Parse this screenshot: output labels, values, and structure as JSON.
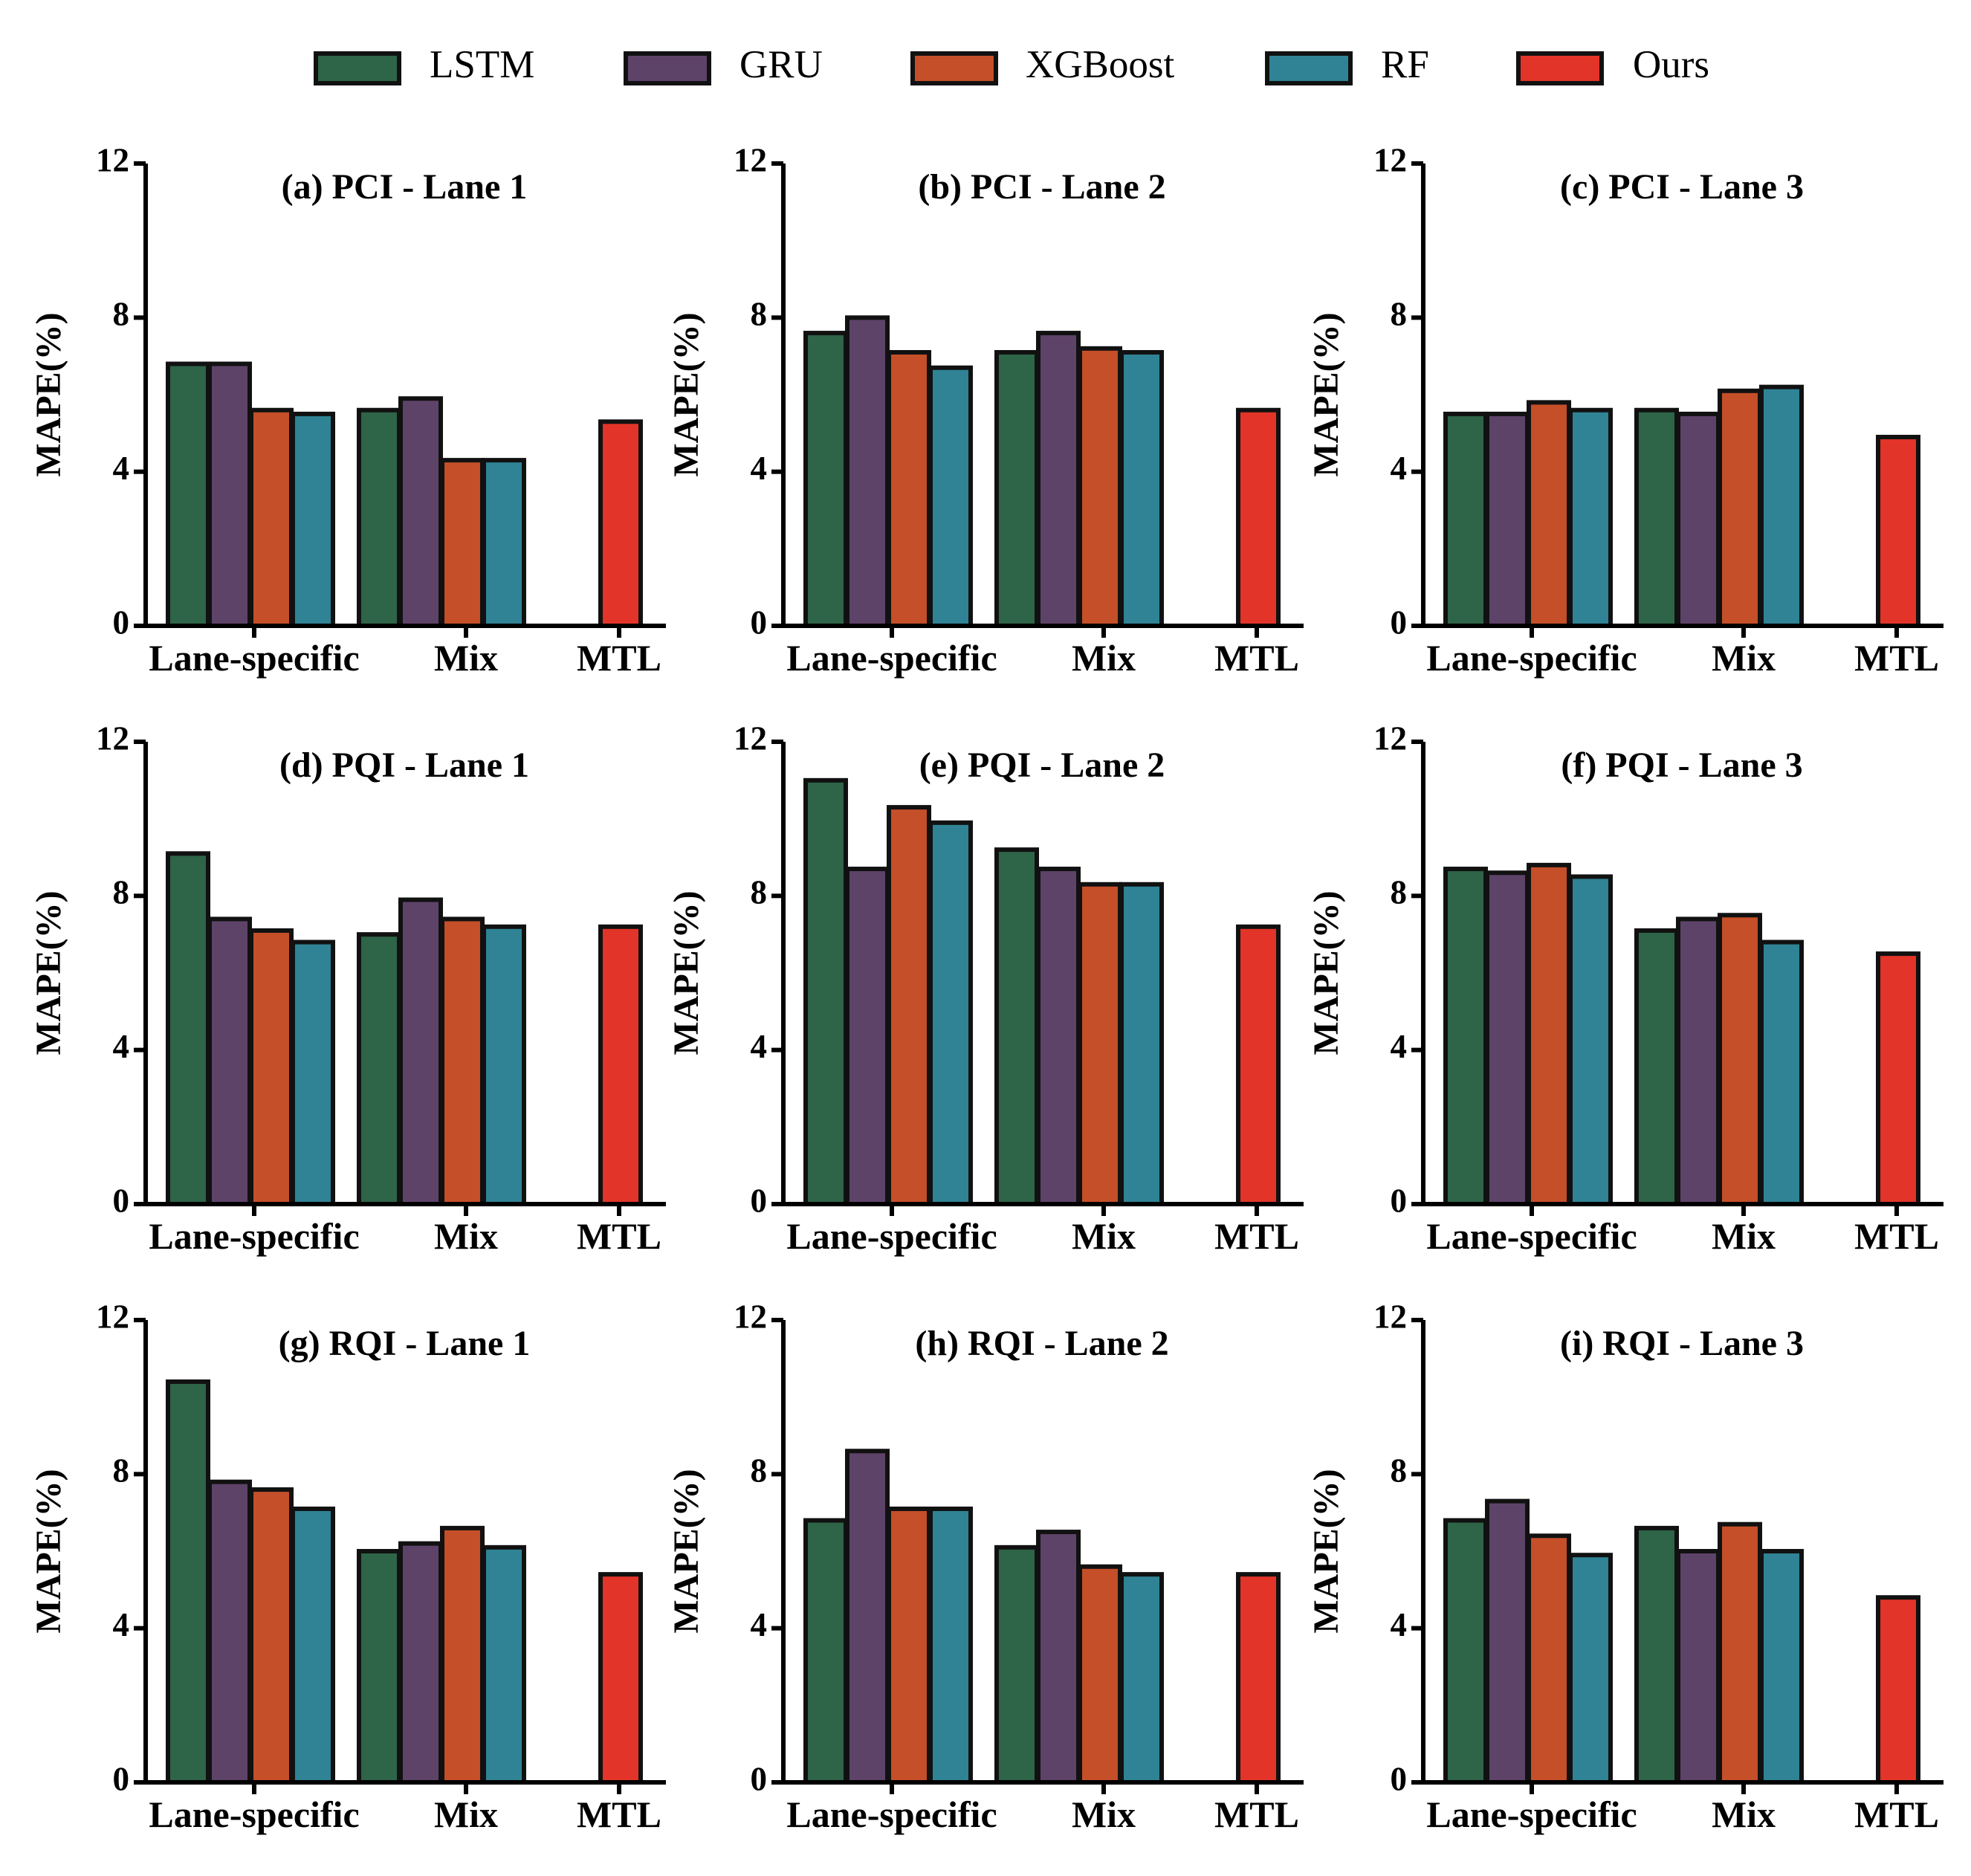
{
  "legend": [
    {
      "name": "LSTM",
      "color": "#2e6448"
    },
    {
      "name": "GRU",
      "color": "#5e4369"
    },
    {
      "name": "XGBoost",
      "color": "#c44f29"
    },
    {
      "name": "RF",
      "color": "#2f8394"
    },
    {
      "name": "Ours",
      "color": "#e23428"
    }
  ],
  "chart_data": [
    {
      "type": "bar",
      "title": "(a) PCI - Lane 1",
      "ylabel": "MAPE(%)",
      "ylim": [
        0,
        12
      ],
      "yticks": [
        0,
        4,
        8,
        12
      ],
      "categories": [
        "Lane-specific",
        "Mix",
        "MTL"
      ],
      "series": [
        {
          "name": "LSTM",
          "values": [
            6.8,
            5.6,
            null
          ]
        },
        {
          "name": "GRU",
          "values": [
            6.8,
            5.9,
            null
          ]
        },
        {
          "name": "XGBoost",
          "values": [
            5.6,
            4.3,
            null
          ]
        },
        {
          "name": "RF",
          "values": [
            5.5,
            4.3,
            null
          ]
        },
        {
          "name": "Ours",
          "values": [
            null,
            null,
            5.3
          ]
        }
      ]
    },
    {
      "type": "bar",
      "title": "(b) PCI - Lane 2",
      "ylabel": "MAPE(%)",
      "ylim": [
        0,
        12
      ],
      "yticks": [
        0,
        4,
        8,
        12
      ],
      "categories": [
        "Lane-specific",
        "Mix",
        "MTL"
      ],
      "series": [
        {
          "name": "LSTM",
          "values": [
            7.6,
            7.1,
            null
          ]
        },
        {
          "name": "GRU",
          "values": [
            8.0,
            7.6,
            null
          ]
        },
        {
          "name": "XGBoost",
          "values": [
            7.1,
            7.2,
            null
          ]
        },
        {
          "name": "RF",
          "values": [
            6.7,
            7.1,
            null
          ]
        },
        {
          "name": "Ours",
          "values": [
            null,
            null,
            5.6
          ]
        }
      ]
    },
    {
      "type": "bar",
      "title": "(c) PCI - Lane 3",
      "ylabel": "MAPE(%)",
      "ylim": [
        0,
        12
      ],
      "yticks": [
        0,
        4,
        8,
        12
      ],
      "categories": [
        "Lane-specific",
        "Mix",
        "MTL"
      ],
      "series": [
        {
          "name": "LSTM",
          "values": [
            5.5,
            5.6,
            null
          ]
        },
        {
          "name": "GRU",
          "values": [
            5.5,
            5.5,
            null
          ]
        },
        {
          "name": "XGBoost",
          "values": [
            5.8,
            6.1,
            null
          ]
        },
        {
          "name": "RF",
          "values": [
            5.6,
            6.2,
            null
          ]
        },
        {
          "name": "Ours",
          "values": [
            null,
            null,
            4.9
          ]
        }
      ]
    },
    {
      "type": "bar",
      "title": "(d) PQI - Lane 1",
      "ylabel": "MAPE(%)",
      "ylim": [
        0,
        12
      ],
      "yticks": [
        0,
        4,
        8,
        12
      ],
      "categories": [
        "Lane-specific",
        "Mix",
        "MTL"
      ],
      "series": [
        {
          "name": "LSTM",
          "values": [
            9.1,
            7.0,
            null
          ]
        },
        {
          "name": "GRU",
          "values": [
            7.4,
            7.9,
            null
          ]
        },
        {
          "name": "XGBoost",
          "values": [
            7.1,
            7.4,
            null
          ]
        },
        {
          "name": "RF",
          "values": [
            6.8,
            7.2,
            null
          ]
        },
        {
          "name": "Ours",
          "values": [
            null,
            null,
            7.2
          ]
        }
      ]
    },
    {
      "type": "bar",
      "title": "(e) PQI - Lane 2",
      "ylabel": "MAPE(%)",
      "ylim": [
        0,
        12
      ],
      "yticks": [
        0,
        4,
        8,
        12
      ],
      "categories": [
        "Lane-specific",
        "Mix",
        "MTL"
      ],
      "series": [
        {
          "name": "LSTM",
          "values": [
            11.0,
            9.2,
            null
          ]
        },
        {
          "name": "GRU",
          "values": [
            8.7,
            8.7,
            null
          ]
        },
        {
          "name": "XGBoost",
          "values": [
            10.3,
            8.3,
            null
          ]
        },
        {
          "name": "RF",
          "values": [
            9.9,
            8.3,
            null
          ]
        },
        {
          "name": "Ours",
          "values": [
            null,
            null,
            7.2
          ]
        }
      ]
    },
    {
      "type": "bar",
      "title": "(f) PQI - Lane 3",
      "ylabel": "MAPE(%)",
      "ylim": [
        0,
        12
      ],
      "yticks": [
        0,
        4,
        8,
        12
      ],
      "categories": [
        "Lane-specific",
        "Mix",
        "MTL"
      ],
      "series": [
        {
          "name": "LSTM",
          "values": [
            8.7,
            7.1,
            null
          ]
        },
        {
          "name": "GRU",
          "values": [
            8.6,
            7.4,
            null
          ]
        },
        {
          "name": "XGBoost",
          "values": [
            8.8,
            7.5,
            null
          ]
        },
        {
          "name": "RF",
          "values": [
            8.5,
            6.8,
            null
          ]
        },
        {
          "name": "Ours",
          "values": [
            null,
            null,
            6.5
          ]
        }
      ]
    },
    {
      "type": "bar",
      "title": "(g) RQI - Lane 1",
      "ylabel": "MAPE(%)",
      "ylim": [
        0,
        12
      ],
      "yticks": [
        0,
        4,
        8,
        12
      ],
      "categories": [
        "Lane-specific",
        "Mix",
        "MTL"
      ],
      "series": [
        {
          "name": "LSTM",
          "values": [
            10.4,
            6.0,
            null
          ]
        },
        {
          "name": "GRU",
          "values": [
            7.8,
            6.2,
            null
          ]
        },
        {
          "name": "XGBoost",
          "values": [
            7.6,
            6.6,
            null
          ]
        },
        {
          "name": "RF",
          "values": [
            7.1,
            6.1,
            null
          ]
        },
        {
          "name": "Ours",
          "values": [
            null,
            null,
            5.4
          ]
        }
      ]
    },
    {
      "type": "bar",
      "title": "(h) RQI - Lane 2",
      "ylabel": "MAPE(%)",
      "ylim": [
        0,
        12
      ],
      "yticks": [
        0,
        4,
        8,
        12
      ],
      "categories": [
        "Lane-specific",
        "Mix",
        "MTL"
      ],
      "series": [
        {
          "name": "LSTM",
          "values": [
            6.8,
            6.1,
            null
          ]
        },
        {
          "name": "GRU",
          "values": [
            8.6,
            6.5,
            null
          ]
        },
        {
          "name": "XGBoost",
          "values": [
            7.1,
            5.6,
            null
          ]
        },
        {
          "name": "RF",
          "values": [
            7.1,
            5.4,
            null
          ]
        },
        {
          "name": "Ours",
          "values": [
            null,
            null,
            5.4
          ]
        }
      ]
    },
    {
      "type": "bar",
      "title": "(i) RQI - Lane 3",
      "ylabel": "MAPE(%)",
      "ylim": [
        0,
        12
      ],
      "yticks": [
        0,
        4,
        8,
        12
      ],
      "categories": [
        "Lane-specific",
        "Mix",
        "MTL"
      ],
      "series": [
        {
          "name": "LSTM",
          "values": [
            6.8,
            6.6,
            null
          ]
        },
        {
          "name": "GRU",
          "values": [
            7.3,
            6.0,
            null
          ]
        },
        {
          "name": "XGBoost",
          "values": [
            6.4,
            6.7,
            null
          ]
        },
        {
          "name": "RF",
          "values": [
            5.9,
            6.0,
            null
          ]
        },
        {
          "name": "Ours",
          "values": [
            null,
            null,
            4.8
          ]
        }
      ]
    }
  ]
}
